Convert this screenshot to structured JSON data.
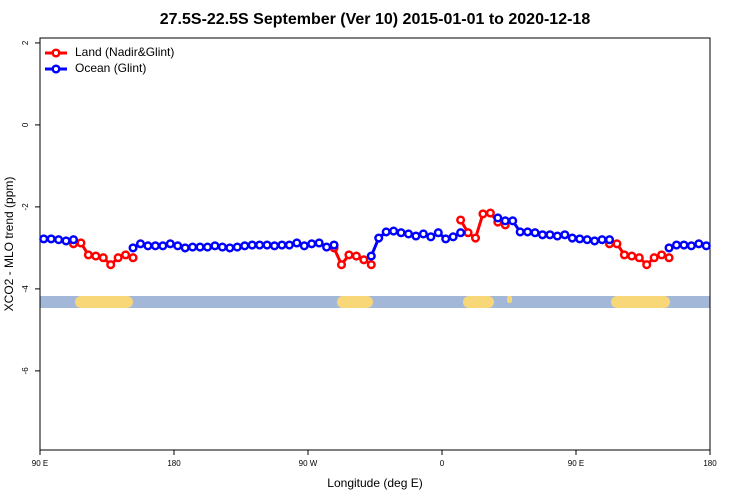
{
  "chart_data": {
    "type": "line",
    "title": "27.5S-22.5S September (Ver 10)   2015-01-01 to 2020-12-18",
    "x_label": "Longitude (deg E)",
    "y_label": "XCO2 - MLO trend (ppm)",
    "xlim": [
      90,
      540
    ],
    "ylim": [
      -7.93,
      2.12
    ],
    "xticks": [
      {
        "value": 90,
        "label": "90 E"
      },
      180,
      {
        "value": 270,
        "label": "90 W"
      },
      {
        "value": 360,
        "label": "0"
      },
      {
        "value": 450,
        "label": "90 E"
      },
      {
        "value": 540,
        "label": "180"
      }
    ],
    "yticks": [
      2,
      0,
      -2,
      -4,
      -6
    ],
    "legend": "top-left",
    "x": [
      92.5,
      97.5,
      102.5,
      107.5,
      112.5,
      117.5,
      122.5,
      127.5,
      132.5,
      137.5,
      142.5,
      147.5,
      152.5,
      157.5,
      162.5,
      167.5,
      172.5,
      177.5,
      182.5,
      187.5,
      192.5,
      197.5,
      202.5,
      207.5,
      212.5,
      217.5,
      222.5,
      227.5,
      232.5,
      237.5,
      242.5,
      247.5,
      252.5,
      257.5,
      262.5,
      267.5,
      272.5,
      277.5,
      282.5,
      287.5,
      292.5,
      297.5,
      302.5,
      307.5,
      312.5,
      317.5,
      322.5,
      327.5,
      332.5,
      337.5,
      342.5,
      347.5,
      352.5,
      357.5,
      362.5,
      367.5,
      372.5,
      377.5,
      382.5,
      387.5,
      392.5,
      397.5,
      402.5,
      407.5,
      412.5,
      417.5,
      422.5,
      427.5,
      432.5,
      437.5,
      442.5,
      447.5,
      452.5,
      457.5,
      462.5,
      467.5,
      472.5,
      477.5,
      482.5,
      487.5,
      492.5,
      497.5,
      502.5,
      507.5,
      512.5,
      517.5,
      522.5,
      527.5,
      532.5,
      537.5
    ],
    "series": [
      {
        "name": "Land (Nadir&Glint)",
        "color": "#ff0000",
        "values": [
          null,
          null,
          null,
          null,
          -2.9,
          -2.88,
          -3.17,
          -3.2,
          -3.24,
          -3.41,
          -3.24,
          -3.17,
          -3.24,
          null,
          null,
          null,
          null,
          null,
          null,
          null,
          null,
          null,
          null,
          null,
          null,
          null,
          null,
          null,
          null,
          null,
          null,
          null,
          null,
          null,
          null,
          null,
          null,
          null,
          null,
          -3.0,
          -3.41,
          -3.17,
          -3.2,
          -3.29,
          -3.41,
          null,
          null,
          null,
          null,
          null,
          null,
          null,
          null,
          null,
          null,
          null,
          -2.32,
          -2.63,
          -2.76,
          -2.17,
          -2.15,
          -2.37,
          -2.44,
          null,
          null,
          null,
          null,
          null,
          null,
          null,
          null,
          null,
          null,
          null,
          null,
          null,
          -2.9,
          -2.9,
          -3.17,
          -3.2,
          -3.24,
          -3.41,
          -3.24,
          -3.17,
          -3.24,
          null,
          null,
          null,
          null,
          null
        ]
      },
      {
        "name": "Ocean (Glint)",
        "color": "#0000ff",
        "values": [
          -2.78,
          -2.78,
          -2.8,
          -2.83,
          -2.8,
          null,
          null,
          null,
          null,
          null,
          null,
          null,
          -3.0,
          -2.9,
          -2.95,
          -2.95,
          -2.95,
          -2.9,
          -2.95,
          -3.0,
          -2.98,
          -2.98,
          -2.98,
          -2.95,
          -2.98,
          -3.0,
          -2.98,
          -2.95,
          -2.93,
          -2.93,
          -2.93,
          -2.95,
          -2.93,
          -2.93,
          -2.88,
          -2.95,
          -2.9,
          -2.88,
          -2.98,
          -2.93,
          null,
          null,
          null,
          null,
          -3.2,
          -2.76,
          -2.61,
          -2.59,
          -2.63,
          -2.66,
          -2.71,
          -2.66,
          -2.73,
          -2.63,
          -2.78,
          -2.73,
          -2.63,
          null,
          null,
          null,
          null,
          -2.27,
          -2.34,
          -2.34,
          -2.61,
          -2.61,
          -2.63,
          -2.68,
          -2.68,
          -2.71,
          -2.68,
          -2.76,
          -2.78,
          -2.8,
          -2.83,
          -2.8,
          -2.8,
          null,
          null,
          null,
          null,
          null,
          null,
          null,
          -3.0,
          -2.93,
          -2.93,
          -2.95,
          -2.9,
          -2.95
        ]
      }
    ]
  }
}
